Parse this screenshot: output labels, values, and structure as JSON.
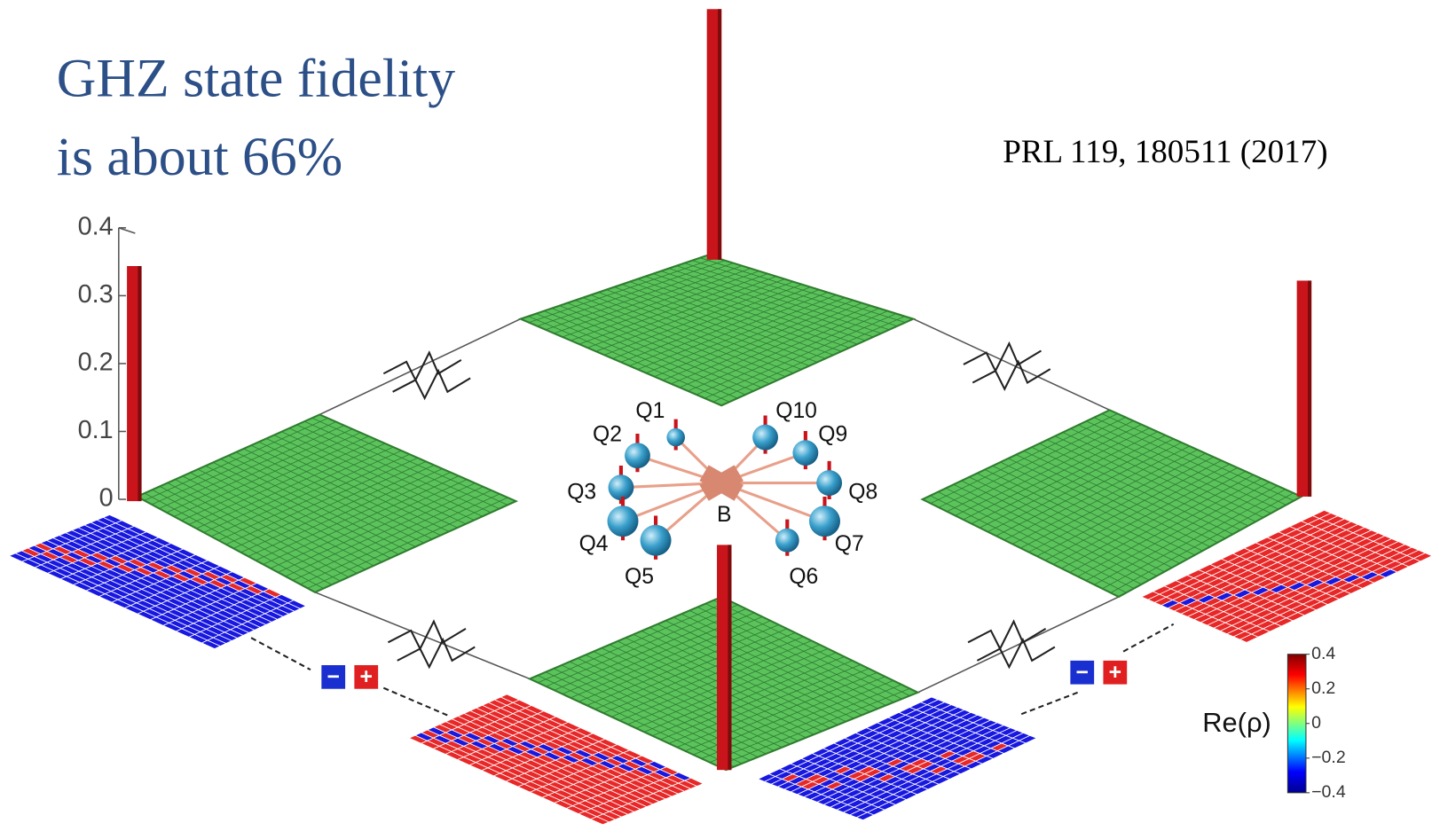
{
  "title": [
    "GHZ state fidelity",
    "is about 66%"
  ],
  "citation": "PRL 119, 180511 (2017)",
  "axis": {
    "ticks": [
      "0.4",
      "0.3",
      "0.2",
      "0.1",
      "0"
    ]
  },
  "qubits": [
    "Q1",
    "Q2",
    "Q3",
    "Q4",
    "Q5",
    "Q6",
    "Q7",
    "Q8",
    "Q9",
    "Q10"
  ],
  "center_label": "B",
  "signs": {
    "minus": "−",
    "plus": "+"
  },
  "colorbar": {
    "label": "Re(ρ)",
    "ticks": [
      "0.4",
      "0.2",
      "0",
      "−0.2",
      "−0.4"
    ]
  }
}
